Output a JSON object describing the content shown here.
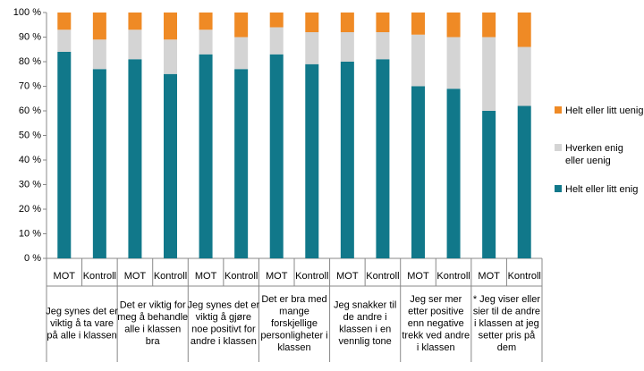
{
  "chart_data": {
    "type": "stacked-bar",
    "categories": [
      "MOT",
      "Kontroll",
      "MOT",
      "Kontroll",
      "MOT",
      "Kontroll",
      "MOT",
      "Kontroll",
      "MOT",
      "Kontroll",
      "MOT",
      "Kontroll",
      "MOT",
      "Kontroll"
    ],
    "groups": [
      [
        "Jeg synes det er",
        "viktig å ta vare",
        "på alle i klassen"
      ],
      [
        "Det er viktig for",
        "meg å behandle",
        "alle i klassen",
        "bra"
      ],
      [
        "Jeg synes det er",
        "viktig å gjøre",
        "noe positivt for",
        "andre i klassen"
      ],
      [
        "Det er bra med",
        "mange",
        "forskjellige",
        "personligheter i",
        "klassen"
      ],
      [
        "Jeg snakker til",
        "de andre i",
        "klassen i en",
        "vennlig tone"
      ],
      [
        "Jeg ser mer",
        "etter positive",
        "enn negative",
        "trekk ved andre",
        "i klassen"
      ],
      [
        "* Jeg viser eller",
        "sier til de andre",
        "i klassen at jeg",
        "setter pris på",
        "dem"
      ]
    ],
    "series": [
      {
        "name": "Helt eller litt enig",
        "color": "#11788a",
        "values": [
          84,
          77,
          81,
          75,
          83,
          77,
          83,
          79,
          80,
          81,
          70,
          69,
          60,
          62
        ]
      },
      {
        "name": "Hverken enig eller uenig",
        "color": "#d4d4d4",
        "values": [
          9,
          12,
          12,
          14,
          10,
          13,
          11,
          13,
          12,
          11,
          21,
          21,
          30,
          24
        ]
      },
      {
        "name": "Helt eller litt uenig",
        "color": "#ef8a25",
        "values": [
          7,
          11,
          7,
          11,
          7,
          10,
          6,
          8,
          8,
          8,
          9,
          10,
          10,
          14
        ]
      }
    ],
    "ylim": [
      0,
      100
    ],
    "yticks": [
      {
        "value": 0,
        "label": "0 %"
      },
      {
        "value": 10,
        "label": "10 %"
      },
      {
        "value": 20,
        "label": "20 %"
      },
      {
        "value": 30,
        "label": "30 %"
      },
      {
        "value": 40,
        "label": "40 %"
      },
      {
        "value": 50,
        "label": "50 %"
      },
      {
        "value": 60,
        "label": "60 %"
      },
      {
        "value": 70,
        "label": "70 %"
      },
      {
        "value": 80,
        "label": "80 %"
      },
      {
        "value": 90,
        "label": "90 %"
      },
      {
        "value": 100,
        "label": "100 %"
      }
    ]
  }
}
